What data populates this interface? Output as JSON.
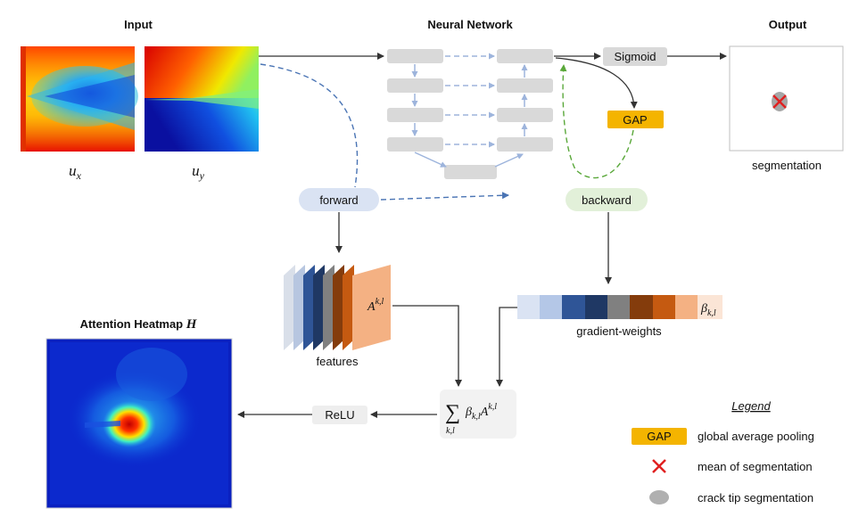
{
  "headers": {
    "input": "Input",
    "network": "Neural Network",
    "output": "Output",
    "heatmap": "Attention Heatmap",
    "heatmap_symbol": "H"
  },
  "input_labels": {
    "ux_base": "u",
    "ux_sub": "x",
    "uy_base": "u",
    "uy_sub": "y"
  },
  "nodes": {
    "sigmoid": "Sigmoid",
    "gap": "GAP",
    "forward": "forward",
    "backward": "backward",
    "relu": "ReLU"
  },
  "labels": {
    "segmentation": "segmentation",
    "features": "features",
    "gradient_weights": "gradient-weights",
    "activation_base": "A",
    "activation_sup": "k,l",
    "beta_base": "β",
    "beta_sub": "k,l",
    "sum_symbol": "∑",
    "sum_sub": "k,l",
    "sum_beta": "β",
    "sum_beta_sub": "k,l",
    "sum_a": "A",
    "sum_a_sup": "k,l"
  },
  "legend": {
    "title": "Legend",
    "items": [
      {
        "icon": "gap-box-icon",
        "badge": "GAP",
        "label": "global average pooling"
      },
      {
        "icon": "red-cross-icon",
        "label": "mean of segmentation"
      },
      {
        "icon": "gray-ellipse-icon",
        "label": "crack tip segmentation"
      }
    ]
  },
  "colors": {
    "gap": "#f4b400",
    "forward_dash": "#4a74b4",
    "backward_dash": "#5aa83a",
    "block": "#d9d9d9",
    "skip": "#9db4dc",
    "feature_layers": [
      "#d9dfe9",
      "#b7c6e0",
      "#2f5597",
      "#1f3864",
      "#808080",
      "#843c0c",
      "#c55a11",
      "#f4b183"
    ],
    "gradient_cells": [
      "#dae3f3",
      "#b4c7e7",
      "#2f5597",
      "#1f3864",
      "#808080",
      "#843c0c",
      "#c55a11",
      "#f4b183",
      "#fbe5d6"
    ]
  }
}
